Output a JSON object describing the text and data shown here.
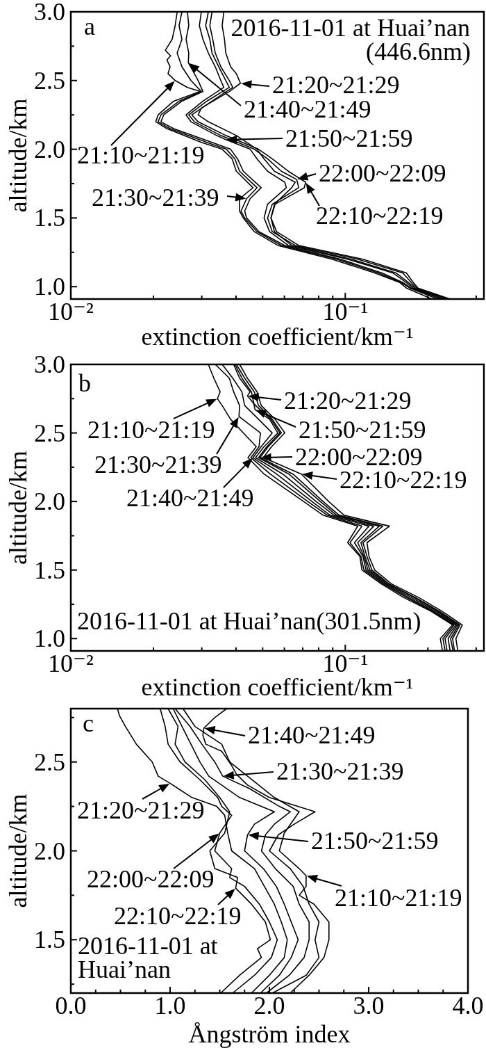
{
  "chart_data": [
    {
      "type": "line",
      "xlabel": "extinction coefficient/km⁻¹",
      "ylabel": "altitude/km",
      "annotations": [
        "a",
        "2016-11-01 at Huai’nan",
        "(446.6nm)",
        {
          "text": "21:10~21:19",
          "x": 0.024,
          "y": 2.5
        },
        {
          "text": "21:20~21:29",
          "x": 0.0415,
          "y": 2.48
        },
        {
          "text": "21:30~21:39",
          "x": 0.0437,
          "y": 1.64
        },
        {
          "text": "21:40~21:49",
          "x": 0.0268,
          "y": 2.63
        },
        {
          "text": "21:50~21:59",
          "x": 0.0367,
          "y": 2.07
        },
        {
          "text": "22:00~22:09",
          "x": 0.0665,
          "y": 1.78
        },
        {
          "text": "22:10~22:19",
          "x": 0.0717,
          "y": 1.76
        }
      ],
      "log": "x",
      "xlim": [
        0.01,
        0.32
      ],
      "ylim": [
        0.91,
        3.0
      ],
      "xticks": [
        {
          "value": 0.01,
          "label": "10⁻²"
        },
        {
          "value": 0.02,
          "label": null
        },
        {
          "value": 0.03,
          "label": null
        },
        {
          "value": 0.04,
          "label": null
        },
        {
          "value": 0.05,
          "label": null
        },
        {
          "value": 0.06,
          "label": null
        },
        {
          "value": 0.07,
          "label": null
        },
        {
          "value": 0.08,
          "label": null
        },
        {
          "value": 0.09,
          "label": null
        },
        {
          "value": 0.1,
          "label": "10⁻¹"
        },
        {
          "value": 0.2,
          "label": null
        },
        {
          "value": 0.3,
          "label": null
        }
      ],
      "yticks": [
        {
          "value": 1,
          "label": "1.0"
        },
        {
          "value": 1.25,
          "label": null
        },
        {
          "value": 1.5,
          "label": "1.5"
        },
        {
          "value": 1.75,
          "label": null
        },
        {
          "value": 2,
          "label": "2.0"
        },
        {
          "value": 2.25,
          "label": null
        },
        {
          "value": 2.5,
          "label": "2.5"
        },
        {
          "value": 2.75,
          "label": null
        },
        {
          "value": 3,
          "label": "3.0"
        }
      ],
      "series": [
        {
          "color": "#000000",
          "x": [
            0.0244,
            0.024,
            0.0234,
            0.0221,
            0.0231,
            0.0224,
            0.023,
            0.0226,
            0.024,
            0.0266,
            0.0296,
            0.0237,
            0.0208,
            0.0204,
            0.0224,
            0.0299,
            0.0356,
            0.0387,
            0.0401,
            0.0461,
            0.0412,
            0.0412,
            0.0425,
            0.0466,
            0.0568,
            0.0895,
            0.128,
            0.158,
            0.167,
            0.207
          ],
          "values": [
            3.0,
            2.9,
            2.8,
            2.72,
            2.68,
            2.65,
            2.6,
            2.55,
            2.5,
            2.45,
            2.42,
            2.35,
            2.25,
            2.2,
            2.15,
            2.05,
            2.0,
            1.93,
            1.84,
            1.72,
            1.64,
            1.55,
            1.5,
            1.4,
            1.3,
            1.2,
            1.1,
            1.03,
            0.99,
            0.91
          ]
        },
        {
          "color": "#000000",
          "x": [
            0.0361,
            0.0356,
            0.0363,
            0.0367,
            0.0382,
            0.0401,
            0.0415,
            0.0378,
            0.0299,
            0.0291,
            0.0317,
            0.0401,
            0.0477,
            0.0506,
            0.0552,
            0.0657,
            0.0638,
            0.0552,
            0.0536,
            0.0552,
            0.0638,
            0.105,
            0.153,
            0.17,
            0.18,
            0.237
          ],
          "values": [
            3.0,
            2.9,
            2.8,
            2.7,
            2.6,
            2.55,
            2.48,
            2.42,
            2.3,
            2.25,
            2.2,
            2.1,
            2.0,
            1.93,
            1.84,
            1.76,
            1.72,
            1.6,
            1.5,
            1.4,
            1.3,
            1.2,
            1.1,
            1.03,
            0.99,
            0.91
          ]
        },
        {
          "color": "#000000",
          "x": [
            0.0254,
            0.0248,
            0.0254,
            0.0244,
            0.0254,
            0.0274,
            0.0299,
            0.0248,
            0.0213,
            0.0208,
            0.023,
            0.0313,
            0.0369,
            0.0396,
            0.0412,
            0.0477,
            0.0437,
            0.0417,
            0.043,
            0.0477,
            0.0585,
            0.0932,
            0.132,
            0.16,
            0.172,
            0.217
          ],
          "values": [
            3.0,
            2.9,
            2.8,
            2.7,
            2.6,
            2.5,
            2.42,
            2.35,
            2.25,
            2.2,
            2.15,
            2.05,
            2.0,
            1.93,
            1.84,
            1.72,
            1.64,
            1.55,
            1.5,
            1.4,
            1.3,
            1.2,
            1.1,
            1.03,
            0.99,
            0.91
          ]
        },
        {
          "color": "#000000",
          "x": [
            0.0266,
            0.0269,
            0.0263,
            0.0269,
            0.0268,
            0.0282,
            0.0291,
            0.0303,
            0.0254,
            0.0218,
            0.0213,
            0.0237,
            0.0327,
            0.0382,
            0.0405,
            0.0425,
            0.0494,
            0.045,
            0.043,
            0.0437,
            0.0485,
            0.0602,
            0.096,
            0.136,
            0.162,
            0.174,
            0.224
          ],
          "values": [
            3.0,
            2.9,
            2.8,
            2.7,
            2.63,
            2.55,
            2.5,
            2.42,
            2.35,
            2.25,
            2.2,
            2.15,
            2.05,
            2.0,
            1.93,
            1.84,
            1.72,
            1.64,
            1.55,
            1.5,
            1.4,
            1.3,
            1.2,
            1.1,
            1.03,
            0.99,
            0.91
          ]
        },
        {
          "color": "#000000",
          "x": [
            0.0299,
            0.0294,
            0.0303,
            0.0317,
            0.0336,
            0.0352,
            0.0361,
            0.0303,
            0.0263,
            0.0274,
            0.034,
            0.0367,
            0.045,
            0.0477,
            0.0521,
            0.0602,
            0.061,
            0.0521,
            0.0506,
            0.053,
            0.062,
            0.102,
            0.149,
            0.167,
            0.177,
            0.23
          ],
          "values": [
            3.0,
            2.9,
            2.8,
            2.7,
            2.6,
            2.5,
            2.45,
            2.35,
            2.25,
            2.2,
            2.1,
            2.07,
            2.0,
            1.93,
            1.84,
            1.76,
            1.72,
            1.6,
            1.5,
            1.4,
            1.3,
            1.2,
            1.1,
            1.03,
            0.99,
            0.91
          ]
        },
        {
          "color": "#000000",
          "x": [
            0.0317,
            0.031,
            0.0321,
            0.0327,
            0.0346,
            0.0367,
            0.0378,
            0.0313,
            0.0269,
            0.0282,
            0.0352,
            0.0466,
            0.0521,
            0.0585,
            0.0665,
            0.0677,
            0.0542,
            0.0521,
            0.0542,
            0.0657,
            0.111,
            0.162,
            0.174,
            0.182,
            0.237
          ],
          "values": [
            3.0,
            2.9,
            2.8,
            2.7,
            2.6,
            2.5,
            2.45,
            2.35,
            2.25,
            2.2,
            2.1,
            2.0,
            1.93,
            1.84,
            1.78,
            1.72,
            1.6,
            1.5,
            1.4,
            1.3,
            1.2,
            1.1,
            1.03,
            0.99,
            0.91
          ]
        },
        {
          "color": "#000000",
          "x": [
            0.0327,
            0.0321,
            0.0329,
            0.0336,
            0.0352,
            0.0378,
            0.0389,
            0.0327,
            0.0276,
            0.0291,
            0.0367,
            0.0483,
            0.0542,
            0.062,
            0.0717,
            0.0709,
            0.0555,
            0.0536,
            0.0562,
            0.0677,
            0.116,
            0.167,
            0.177,
            0.184,
            0.241
          ],
          "values": [
            3.0,
            2.9,
            2.8,
            2.7,
            2.6,
            2.5,
            2.45,
            2.35,
            2.25,
            2.2,
            2.1,
            2.0,
            1.93,
            1.84,
            1.76,
            1.72,
            1.6,
            1.5,
            1.4,
            1.3,
            1.2,
            1.1,
            1.03,
            0.99,
            0.91
          ]
        }
      ]
    },
    {
      "type": "line",
      "xlabel": "extinction coefficient/km⁻¹",
      "ylabel": "altitude/km",
      "annotations": [
        "b",
        "2016-11-01 at Huai’nan(301.5nm)",
        {
          "text": "21:10~21:19",
          "x": 0.0342,
          "y": 2.75
        },
        {
          "text": "21:20~21:29",
          "x": 0.044,
          "y": 2.77
        },
        {
          "text": "21:30~21:39",
          "x": 0.041,
          "y": 2.62
        },
        {
          "text": "21:40~21:49",
          "x": 0.0461,
          "y": 2.32
        },
        {
          "text": "21:50~21:59",
          "x": 0.0469,
          "y": 2.67
        },
        {
          "text": "22:00~22:09",
          "x": 0.0489,
          "y": 2.32
        },
        {
          "text": "22:10~22:19",
          "x": 0.0692,
          "y": 2.2
        }
      ],
      "log": "x",
      "xlim": [
        0.01,
        0.32
      ],
      "ylim": [
        0.91,
        3.0
      ],
      "xticks": [
        {
          "value": 0.01,
          "label": "10⁻²"
        },
        {
          "value": 0.02,
          "label": null
        },
        {
          "value": 0.03,
          "label": null
        },
        {
          "value": 0.04,
          "label": null
        },
        {
          "value": 0.05,
          "label": null
        },
        {
          "value": 0.06,
          "label": null
        },
        {
          "value": 0.07,
          "label": null
        },
        {
          "value": 0.08,
          "label": null
        },
        {
          "value": 0.09,
          "label": null
        },
        {
          "value": 0.1,
          "label": "10⁻¹"
        },
        {
          "value": 0.2,
          "label": null
        },
        {
          "value": 0.3,
          "label": null
        }
      ],
      "yticks": [
        {
          "value": 1,
          "label": "1.0"
        },
        {
          "value": 1.25,
          "label": null
        },
        {
          "value": 1.5,
          "label": "1.5"
        },
        {
          "value": 1.75,
          "label": null
        },
        {
          "value": 2,
          "label": "2.0"
        },
        {
          "value": 2.25,
          "label": null
        },
        {
          "value": 2.5,
          "label": "2.5"
        },
        {
          "value": 2.75,
          "label": null
        },
        {
          "value": 3,
          "label": "3.0"
        }
      ],
      "series": [
        {
          "color": "#000000",
          "x": [
            0.0317,
            0.0332,
            0.035,
            0.0342,
            0.0356,
            0.0382,
            0.0425,
            0.0474,
            0.0442,
            0.0506,
            0.0705,
            0.083,
            0.111,
            0.102,
            0.113,
            0.115,
            0.135,
            0.163,
            0.205,
            0.246,
            0.222,
            0.226
          ],
          "values": [
            3.0,
            2.9,
            2.8,
            2.75,
            2.7,
            2.6,
            2.5,
            2.4,
            2.32,
            2.2,
            2.0,
            1.9,
            1.82,
            1.7,
            1.6,
            1.5,
            1.4,
            1.3,
            1.2,
            1.1,
            1.0,
            0.91
          ]
        },
        {
          "color": "#000000",
          "x": [
            0.0392,
            0.0412,
            0.045,
            0.044,
            0.0471,
            0.0536,
            0.0578,
            0.0518,
            0.0483,
            0.0623,
            0.0811,
            0.093,
            0.133,
            0.114,
            0.118,
            0.123,
            0.143,
            0.178,
            0.218,
            0.259,
            0.242,
            0.247
          ],
          "values": [
            3.0,
            2.9,
            2.8,
            2.77,
            2.7,
            2.6,
            2.5,
            2.4,
            2.32,
            2.2,
            2.0,
            1.9,
            1.82,
            1.7,
            1.6,
            1.5,
            1.4,
            1.3,
            1.2,
            1.1,
            1.0,
            0.91
          ]
        },
        {
          "color": "#000000",
          "x": [
            0.0336,
            0.0378,
            0.0392,
            0.0412,
            0.041,
            0.0491,
            0.0485,
            0.0453,
            0.0533,
            0.073,
            0.086,
            0.115,
            0.104,
            0.114,
            0.117,
            0.137,
            0.167,
            0.208,
            0.249,
            0.227,
            0.231
          ],
          "values": [
            3.0,
            2.9,
            2.8,
            2.7,
            2.62,
            2.5,
            2.4,
            2.32,
            2.2,
            2.0,
            1.9,
            1.82,
            1.7,
            1.6,
            1.5,
            1.4,
            1.3,
            1.2,
            1.1,
            1.0,
            0.91
          ]
        },
        {
          "color": "#000000",
          "x": [
            0.0356,
            0.0389,
            0.042,
            0.043,
            0.0483,
            0.0542,
            0.0494,
            0.0461,
            0.0562,
            0.0756,
            0.088,
            0.122,
            0.108,
            0.116,
            0.119,
            0.139,
            0.17,
            0.211,
            0.253,
            0.231,
            0.235
          ],
          "values": [
            3.0,
            2.9,
            2.8,
            2.7,
            2.6,
            2.5,
            2.4,
            2.32,
            2.2,
            2.0,
            1.9,
            1.82,
            1.7,
            1.6,
            1.5,
            1.4,
            1.3,
            1.2,
            1.1,
            1.0,
            0.91
          ]
        },
        {
          "color": "#000000",
          "x": [
            0.0396,
            0.042,
            0.0455,
            0.0469,
            0.053,
            0.0568,
            0.0506,
            0.0471,
            0.0592,
            0.0783,
            0.091,
            0.127,
            0.111,
            0.117,
            0.121,
            0.141,
            0.174,
            0.215,
            0.256,
            0.237,
            0.241
          ],
          "values": [
            3.0,
            2.9,
            2.8,
            2.67,
            2.6,
            2.5,
            2.4,
            2.32,
            2.2,
            2.0,
            1.9,
            1.82,
            1.7,
            1.6,
            1.5,
            1.4,
            1.3,
            1.2,
            1.1,
            1.0,
            0.91
          ]
        },
        {
          "color": "#000000",
          "x": [
            0.0401,
            0.043,
            0.0466,
            0.0483,
            0.0542,
            0.0585,
            0.0524,
            0.0489,
            0.0645,
            0.083,
            0.095,
            0.137,
            0.116,
            0.12,
            0.125,
            0.144,
            0.18,
            0.22,
            0.262,
            0.246,
            0.25
          ],
          "values": [
            3.0,
            2.9,
            2.8,
            2.7,
            2.6,
            2.5,
            2.4,
            2.32,
            2.2,
            2.0,
            1.9,
            1.82,
            1.7,
            1.6,
            1.5,
            1.4,
            1.3,
            1.2,
            1.1,
            1.0,
            0.91
          ]
        },
        {
          "color": "#000000",
          "x": [
            0.0412,
            0.044,
            0.0477,
            0.0494,
            0.0555,
            0.0602,
            0.0539,
            0.0503,
            0.0692,
            0.087,
            0.099,
            0.145,
            0.12,
            0.122,
            0.128,
            0.147,
            0.185,
            0.225,
            0.267,
            0.253,
            0.257
          ],
          "values": [
            3.0,
            2.9,
            2.8,
            2.7,
            2.6,
            2.5,
            2.4,
            2.32,
            2.2,
            2.0,
            1.9,
            1.82,
            1.7,
            1.6,
            1.5,
            1.4,
            1.3,
            1.2,
            1.1,
            1.0,
            0.91
          ]
        }
      ]
    },
    {
      "type": "line",
      "xlabel": "Ångström index",
      "ylabel": "altitude/km",
      "annotations": [
        "c",
        "2016-11-01 at Huai’nan",
        {
          "text": "21:10~21:19",
          "x": 2.37,
          "y": 1.86
        },
        {
          "text": "21:20~21:29",
          "x": 1.0,
          "y": 2.38
        },
        {
          "text": "21:30~21:39",
          "x": 1.53,
          "y": 2.42
        },
        {
          "text": "21:40~21:49",
          "x": 1.34,
          "y": 2.69
        },
        {
          "text": "21:50~21:59",
          "x": 1.78,
          "y": 2.09
        },
        {
          "text": "22:00~22:09",
          "x": 1.5,
          "y": 2.1
        },
        {
          "text": "22:10~22:19",
          "x": 1.66,
          "y": 1.79
        }
      ],
      "xlim": [
        0,
        4.0
      ],
      "ylim": [
        1.2,
        2.8
      ],
      "xticks": [
        {
          "value": 0,
          "label": "0.0"
        },
        {
          "value": 0.25,
          "label": null
        },
        {
          "value": 0.5,
          "label": null
        },
        {
          "value": 0.75,
          "label": null
        },
        {
          "value": 1,
          "label": "1.0"
        },
        {
          "value": 1.25,
          "label": null
        },
        {
          "value": 1.5,
          "label": null
        },
        {
          "value": 1.75,
          "label": null
        },
        {
          "value": 2,
          "label": "2.0"
        },
        {
          "value": 2.25,
          "label": null
        },
        {
          "value": 2.5,
          "label": null
        },
        {
          "value": 2.75,
          "label": null
        },
        {
          "value": 3,
          "label": "3.0"
        },
        {
          "value": 3.25,
          "label": null
        },
        {
          "value": 3.5,
          "label": null
        },
        {
          "value": 3.75,
          "label": null
        },
        {
          "value": 4,
          "label": "4.0"
        }
      ],
      "yticks": [
        {
          "value": 1.25,
          "label": null
        },
        {
          "value": 1.5,
          "label": "1.5"
        },
        {
          "value": 1.75,
          "label": null
        },
        {
          "value": 2,
          "label": "2.0"
        },
        {
          "value": 2.25,
          "label": null
        },
        {
          "value": 2.5,
          "label": "2.5"
        },
        {
          "value": 2.75,
          "label": null
        }
      ],
      "series": [
        {
          "color": "#000000",
          "x": [
            1.13,
            1.25,
            1.52,
            1.6,
            1.78,
            2.05,
            2.3,
            2.15,
            2.1,
            2.3,
            2.37,
            2.37,
            2.3,
            2.45,
            2.6,
            2.6,
            2.55,
            2.4,
            2.21
          ],
          "values": [
            2.8,
            2.7,
            2.6,
            2.5,
            2.42,
            2.3,
            2.22,
            2.1,
            2.0,
            1.9,
            1.86,
            1.8,
            1.75,
            1.7,
            1.6,
            1.5,
            1.4,
            1.3,
            1.2
          ]
        },
        {
          "color": "#000000",
          "x": [
            0.47,
            0.49,
            0.55,
            0.66,
            0.82,
            0.88,
            1.0,
            1.22,
            1.47,
            1.55,
            1.58,
            1.62,
            1.85,
            1.95,
            2.05,
            2.12,
            2.18,
            2.15,
            2.0,
            1.82
          ],
          "values": [
            2.8,
            2.76,
            2.7,
            2.6,
            2.5,
            2.42,
            2.38,
            2.3,
            2.25,
            2.2,
            2.1,
            2.0,
            1.9,
            1.8,
            1.7,
            1.6,
            1.5,
            1.4,
            1.3,
            1.2
          ]
        },
        {
          "color": "#000000",
          "x": [
            1.05,
            1.2,
            1.32,
            1.45,
            1.53,
            1.8,
            2.1,
            2.21,
            2.05,
            1.96,
            1.92,
            2.06,
            2.24,
            2.3,
            2.4,
            2.4,
            2.35,
            2.2,
            1.97
          ],
          "values": [
            2.8,
            2.7,
            2.6,
            2.5,
            2.42,
            2.35,
            2.25,
            2.22,
            2.15,
            2.09,
            2.0,
            1.9,
            1.8,
            1.7,
            1.6,
            1.5,
            1.4,
            1.3,
            1.2
          ]
        },
        {
          "color": "#000000",
          "x": [
            1.57,
            1.45,
            1.34,
            1.33,
            1.36,
            1.52,
            1.62,
            1.67,
            1.78,
            2.0,
            2.46,
            2.25,
            2.09,
            2.0,
            2.21,
            2.34,
            2.4,
            2.5,
            2.46,
            2.5,
            2.37,
            2.03
          ],
          "values": [
            2.8,
            2.75,
            2.69,
            2.65,
            2.6,
            2.56,
            2.48,
            2.43,
            2.37,
            2.3,
            2.22,
            2.15,
            2.09,
            2.0,
            1.9,
            1.8,
            1.7,
            1.6,
            1.5,
            1.4,
            1.3,
            1.2
          ]
        },
        {
          "color": "#000000",
          "x": [
            1.03,
            1.12,
            1.21,
            1.3,
            1.39,
            1.7,
            2.05,
            1.85,
            1.78,
            1.75,
            1.94,
            2.07,
            2.15,
            2.22,
            2.29,
            2.22,
            2.1,
            1.91
          ],
          "values": [
            2.8,
            2.7,
            2.6,
            2.5,
            2.42,
            2.3,
            2.22,
            2.15,
            2.09,
            2.0,
            1.9,
            1.8,
            1.7,
            1.6,
            1.5,
            1.4,
            1.3,
            1.2
          ]
        },
        {
          "color": "#000000",
          "x": [
            0.9,
            0.95,
            0.98,
            1.1,
            1.3,
            1.48,
            1.52,
            1.62,
            1.5,
            1.45,
            1.62,
            1.6,
            1.75,
            1.9,
            2.0,
            2.08,
            2.02,
            1.85,
            1.63
          ],
          "values": [
            2.8,
            2.7,
            2.6,
            2.5,
            2.4,
            2.3,
            2.25,
            2.2,
            2.1,
            2.0,
            1.9,
            1.85,
            1.8,
            1.7,
            1.6,
            1.5,
            1.4,
            1.3,
            1.2
          ]
        },
        {
          "color": "#000000",
          "x": [
            0.98,
            1.08,
            1.05,
            1.15,
            1.35,
            1.5,
            1.6,
            1.55,
            1.4,
            1.45,
            1.68,
            1.66,
            1.82,
            1.96,
            2.01,
            1.88,
            1.92,
            1.7,
            1.51
          ],
          "values": [
            2.8,
            2.7,
            2.6,
            2.5,
            2.4,
            2.3,
            2.22,
            2.1,
            2.0,
            1.9,
            1.85,
            1.79,
            1.7,
            1.6,
            1.5,
            1.45,
            1.4,
            1.3,
            1.2
          ]
        }
      ]
    }
  ]
}
